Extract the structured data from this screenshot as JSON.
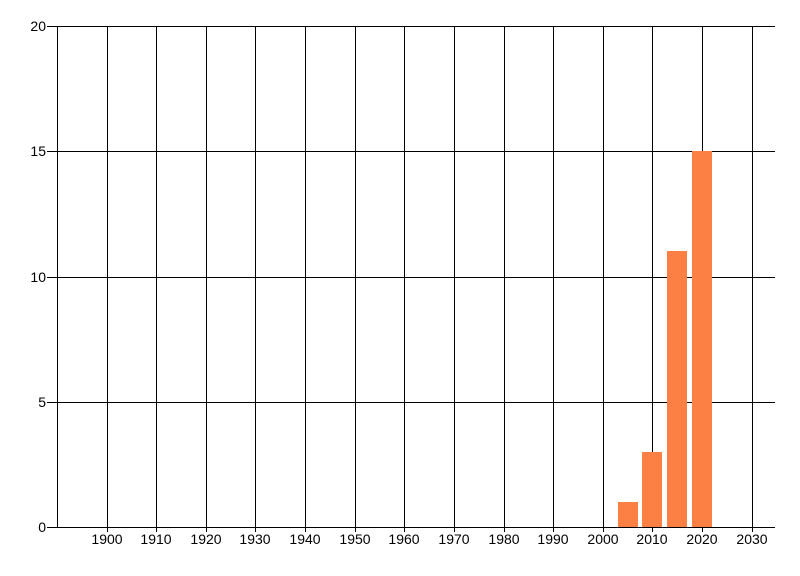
{
  "chart_data": {
    "type": "bar",
    "title": "",
    "xlabel": "",
    "ylabel": "",
    "categories": [
      "2005",
      "2010",
      "2015",
      "2020"
    ],
    "values": [
      1,
      3,
      11,
      15
    ],
    "bar_width_years": 4,
    "xlim": [
      1890,
      2034.7
    ],
    "ylim": [
      0,
      20
    ],
    "x_gridline_years": [
      1890,
      1900,
      1910,
      1920,
      1930,
      1940,
      1950,
      1960,
      1970,
      1980,
      1990,
      2000,
      2010,
      2020,
      2030
    ],
    "x_tick_years": [
      1900,
      1910,
      1920,
      1930,
      1940,
      1950,
      1960,
      1970,
      1980,
      1990,
      2000,
      2010,
      2020,
      2030
    ],
    "x_tick_labels": [
      "1900",
      "1910",
      "1920",
      "1930",
      "1940",
      "1950",
      "1960",
      "1970",
      "1980",
      "1990",
      "2000",
      "2010",
      "2020",
      "2030"
    ],
    "y_tick_values": [
      0,
      5,
      10,
      15,
      20
    ],
    "y_tick_labels": [
      "0",
      "5",
      "10",
      "15",
      "20"
    ],
    "grid": true,
    "legend": false,
    "colors": {
      "bar": "#fc8044",
      "line": "#000000",
      "text": "#000000",
      "background": "#ffffff"
    }
  }
}
